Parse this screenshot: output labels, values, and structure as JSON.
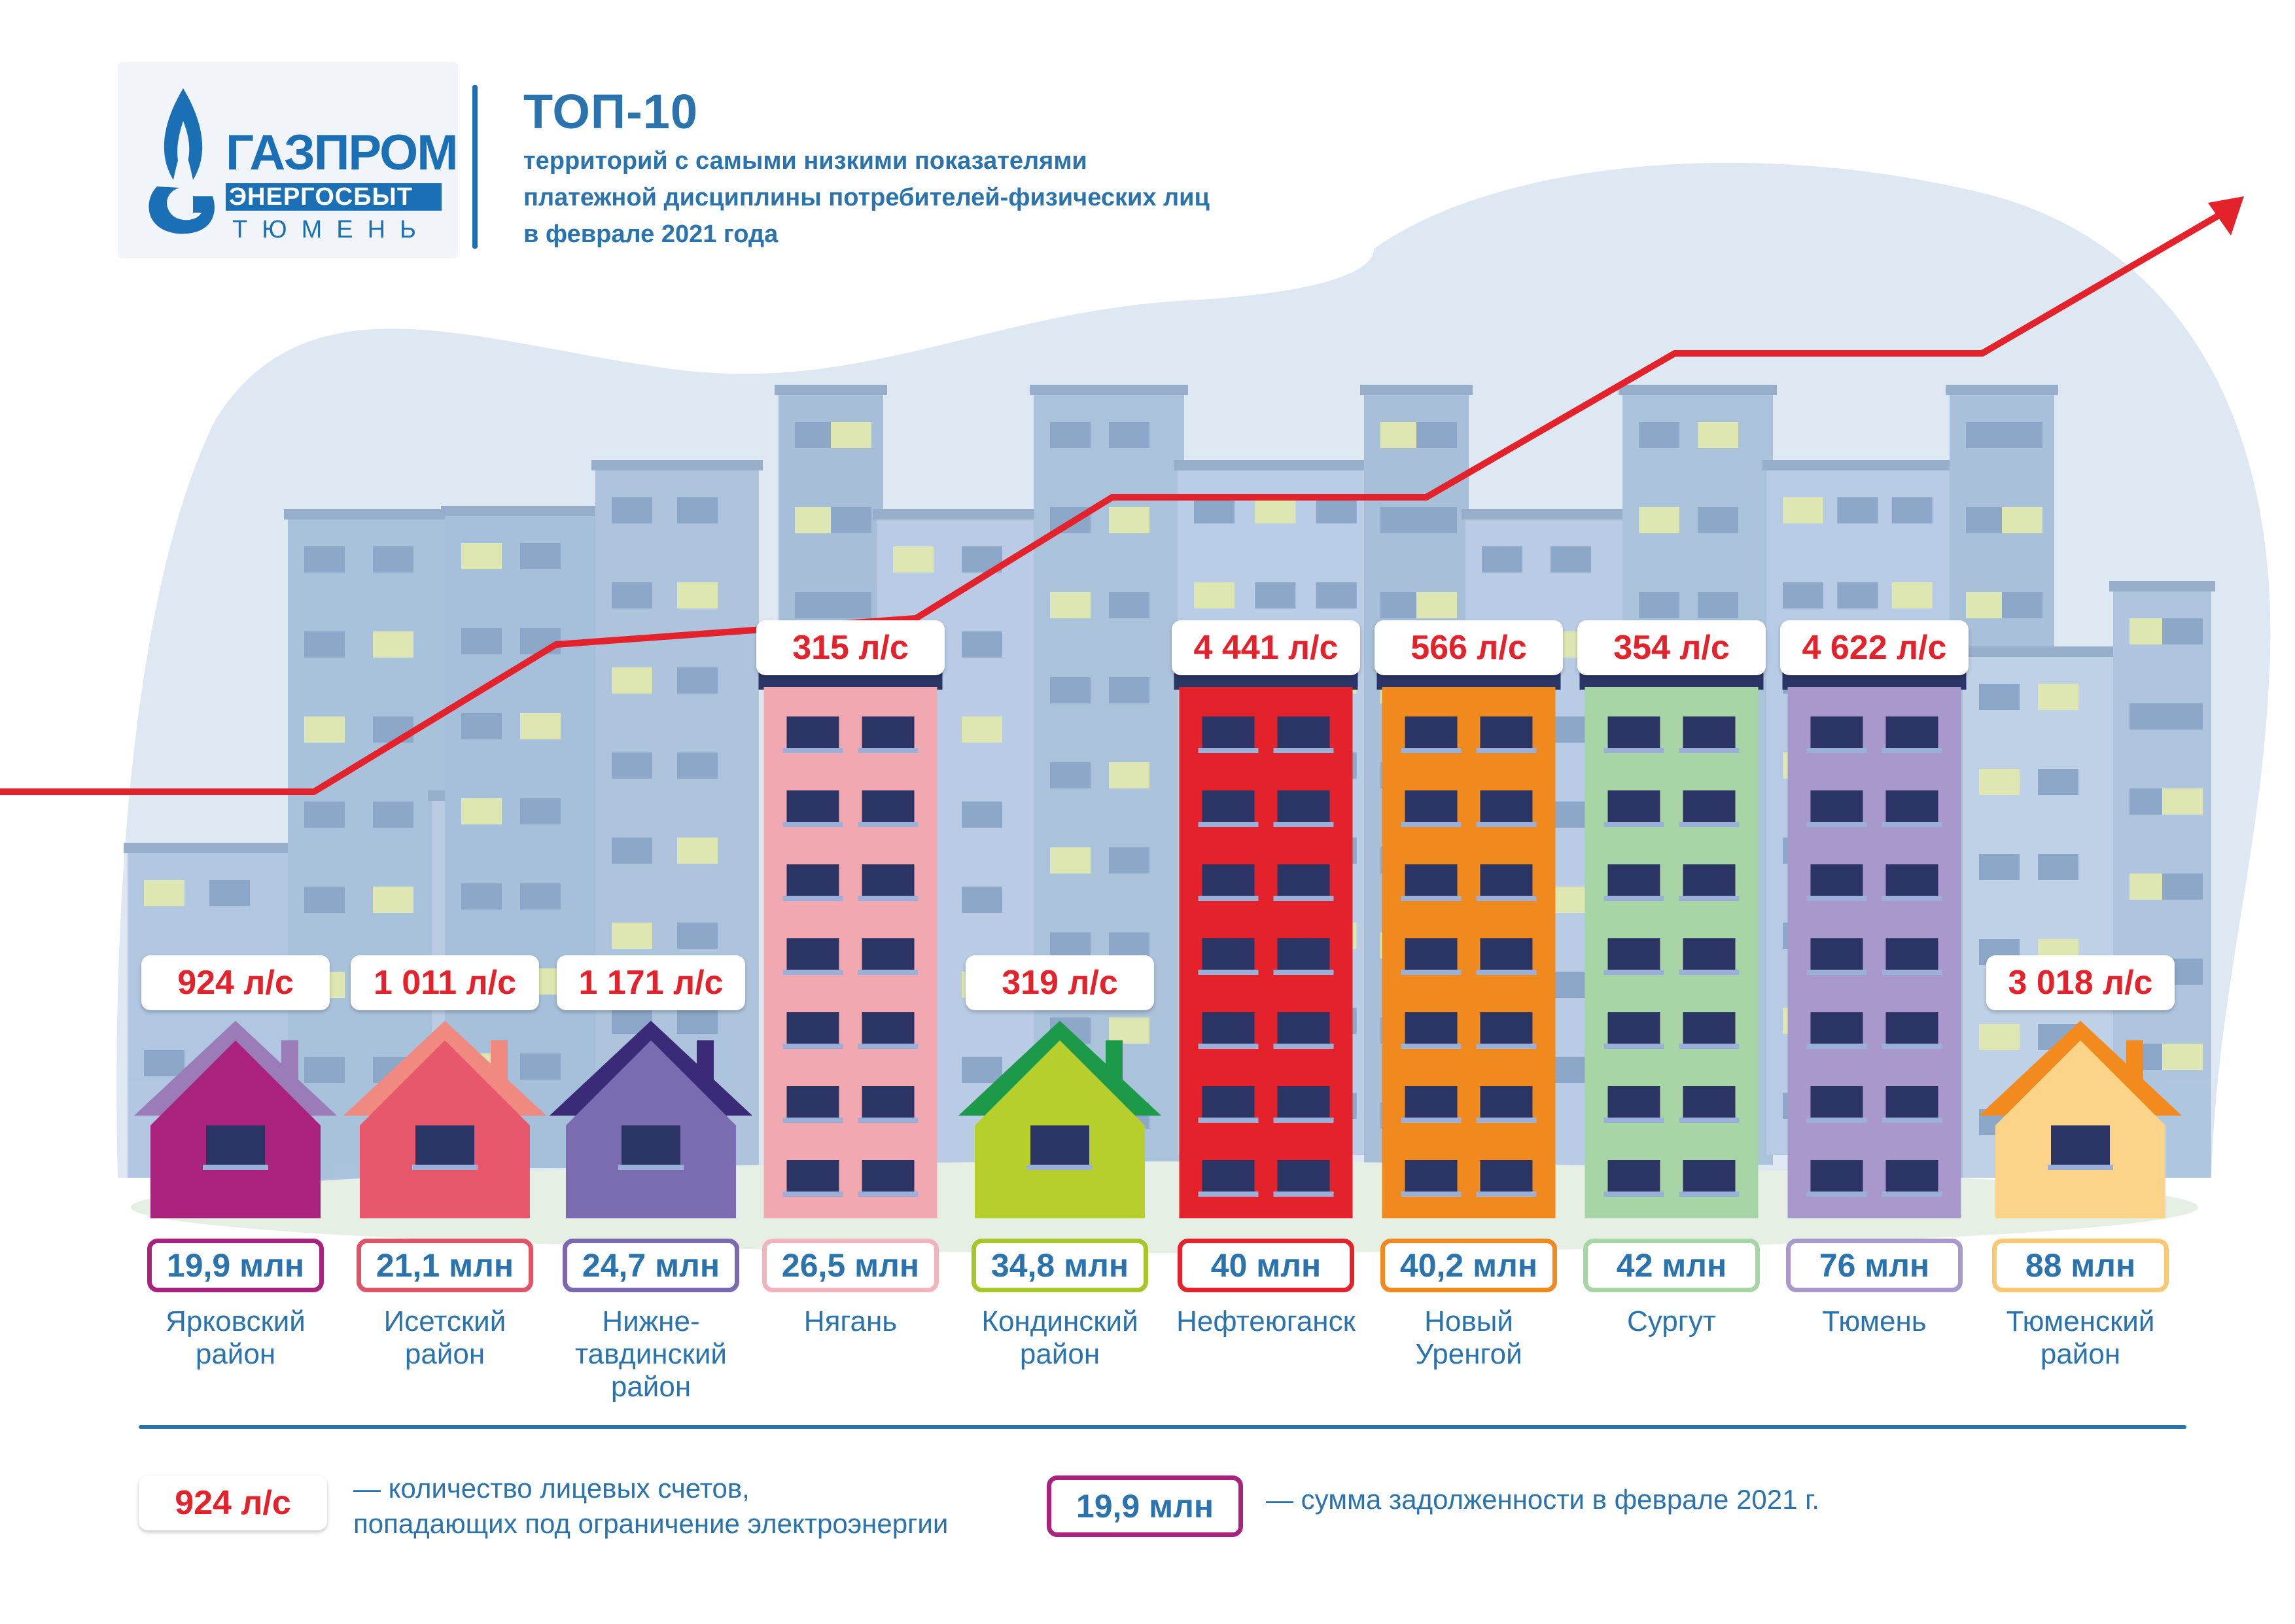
{
  "logo": {
    "line1": "ГАЗПРОМ",
    "line2": "ЭНЕРГОСБЫТ",
    "line3": "ТЮМЕНЬ"
  },
  "header": {
    "title": "ТОП-10",
    "subtitle_lines": [
      "территорий с самыми низкими показателями",
      "платежной дисциплины потребителей-физических лиц",
      "в феврале 2021 года"
    ]
  },
  "colors": {
    "accent": "#2a73ad",
    "arrow": "#e3222b",
    "label_red": "#e3222b"
  },
  "chart_data": {
    "type": "bar",
    "categories": [
      "Ярковский район",
      "Исетский район",
      "Нижне-тавдинский район",
      "Нягань",
      "Кондинский район",
      "Нефтеюганск",
      "Новый Уренгой",
      "Сургут",
      "Тюмень",
      "Тюменский район"
    ],
    "series": [
      {
        "values": [
          19.9,
          21.1,
          24.7,
          26.5,
          34.8,
          40,
          40.2,
          42,
          76,
          88
        ],
        "labels": [
          "19,9 млн",
          "21,1 млн",
          "24,7 млн",
          "26,5 млн",
          "34,8 млн",
          "40 млн",
          "40,2 млн",
          "42 млн",
          "76 млн",
          "88 млн"
        ]
      },
      {
        "values": [
          924,
          1011,
          1171,
          315,
          319,
          4441,
          566,
          354,
          4622,
          3018
        ],
        "labels": [
          "924 л/с",
          "1 011 л/с",
          "1 171 л/с",
          "315 л/с",
          "319 л/с",
          "4 441 л/с",
          "566 л/с",
          "354 л/с",
          "4 622 л/с",
          "3 018 л/с"
        ]
      }
    ],
    "items": [
      {
        "caption": "Ярковский\nрайон",
        "kind": "house",
        "color": "#a9237e",
        "roof": "#9c7cb8",
        "border": "#a9237e"
      },
      {
        "caption": "Исетский\nрайон",
        "kind": "house",
        "color": "#e8586d",
        "roof": "#f08a80",
        "border": "#e05468"
      },
      {
        "caption": "Нижне-\nтавдинский\nрайон",
        "kind": "house",
        "color": "#7b6bb0",
        "roof": "#3a2a78",
        "border": "#7a68b0"
      },
      {
        "caption": "Нягань",
        "kind": "tower",
        "color": "#f2a8b0",
        "border": "#f2b4bc"
      },
      {
        "caption": "Кондинский\nрайон",
        "kind": "house",
        "color": "#b6cf2c",
        "roof": "#1c9a4a",
        "border": "#a7c62a"
      },
      {
        "caption": "Нефтеюганск",
        "kind": "tower",
        "color": "#e3222b",
        "border": "#e3222b"
      },
      {
        "caption": "Новый\nУренгой",
        "kind": "tower",
        "color": "#f08a1e",
        "border": "#f08a1e"
      },
      {
        "caption": "Сургут",
        "kind": "tower",
        "color": "#a8d5a6",
        "border": "#a8d5a6"
      },
      {
        "caption": "Тюмень",
        "kind": "tower",
        "color": "#a998cc",
        "border": "#a998cc"
      },
      {
        "caption": "Тюменский\nрайон",
        "kind": "house",
        "color": "#fbd389",
        "roof": "#f28a1d",
        "border": "#f8c873"
      }
    ]
  },
  "legend": {
    "accounts_sample": "924 л/с",
    "accounts_text": "— количество лицевых счетов,\nпопадающих под ограничение электроэнергии",
    "debt_sample": "19,9 млн",
    "debt_text": "— сумма задолженности в феврале 2021 г."
  }
}
